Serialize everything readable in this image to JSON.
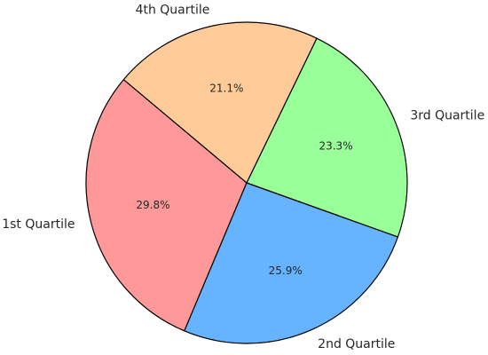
{
  "chart_data": {
    "type": "pie",
    "categories": [
      "1st Quartile",
      "2nd Quartile",
      "3rd Quartile",
      "4th Quartile"
    ],
    "values": [
      29.8,
      25.9,
      23.3,
      21.1
    ],
    "value_labels": [
      "29.8%",
      "25.9%",
      "23.3%",
      "21.1%"
    ],
    "colors": [
      "#ff9999",
      "#66b3ff",
      "#99ff99",
      "#ffcc99"
    ],
    "startangle": 140
  }
}
